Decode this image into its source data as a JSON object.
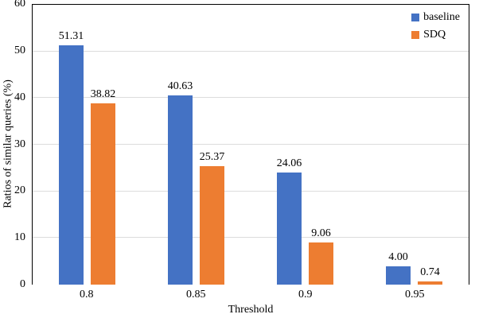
{
  "chart_data": {
    "type": "bar",
    "title": "",
    "xlabel": "Threshold",
    "ylabel": "Ratios of similar queries (%)",
    "categories": [
      "0.8",
      "0.85",
      "0.9",
      "0.95"
    ],
    "series": [
      {
        "name": "baseline",
        "color": "#4472C4",
        "values": [
          51.31,
          40.63,
          24.06,
          4.0
        ],
        "labels": [
          "51.31",
          "40.63",
          "24.06",
          "4.00"
        ]
      },
      {
        "name": "SDQ",
        "color": "#ED7D31",
        "values": [
          38.82,
          25.37,
          9.06,
          0.74
        ],
        "labels": [
          "38.82",
          "25.37",
          "9.06",
          "0.74"
        ]
      }
    ],
    "ylim": [
      0,
      60
    ],
    "yticks": [
      0,
      10,
      20,
      30,
      40,
      50,
      60
    ],
    "grid": true,
    "gridline_color": "#dcdcdc",
    "axis_color": "#000000",
    "legend_position": "top-right"
  }
}
